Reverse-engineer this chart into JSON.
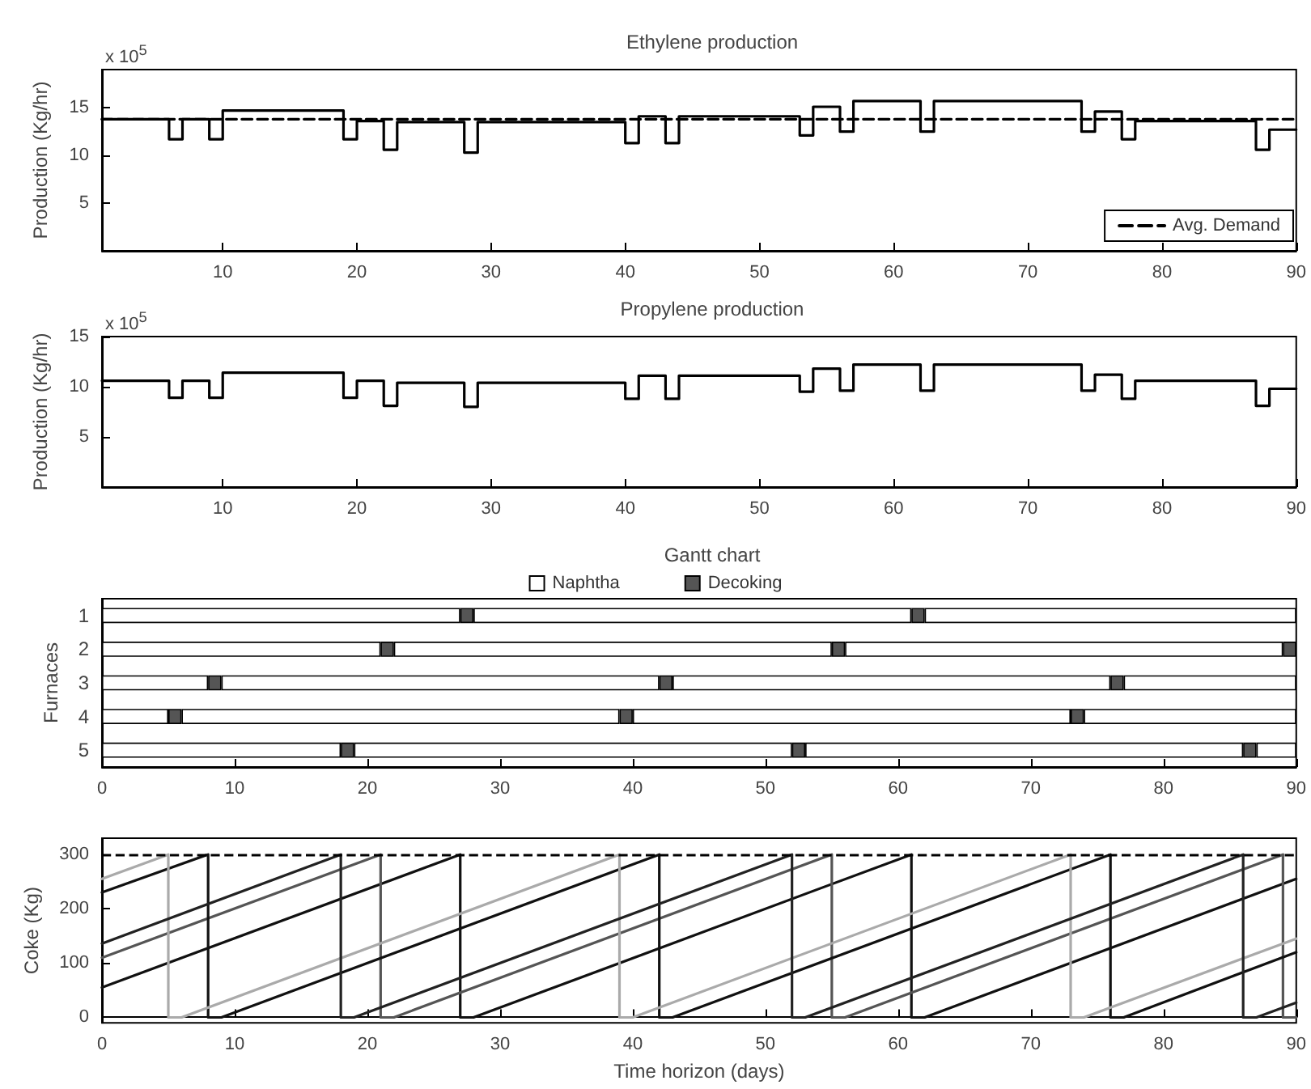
{
  "chart_data": [
    {
      "type": "step",
      "title": "Ethylene production",
      "ylabel": "Production (Kg/hr)",
      "annotations": [
        "x 10$^{5}$"
      ],
      "xlim": [
        1,
        90
      ],
      "xticks": [
        10,
        20,
        30,
        40,
        50,
        60,
        70,
        80,
        90
      ],
      "ylim": [
        0,
        19
      ],
      "yticks": [
        5,
        10,
        15
      ],
      "grid": false,
      "legend": "bottom right",
      "marker": "none",
      "series": [
        {
          "color": "#000000",
          "x": [
            1,
            6,
            7,
            9,
            10,
            19,
            20,
            22,
            23,
            28,
            29,
            40,
            41,
            43,
            44,
            53,
            54,
            56,
            57,
            62,
            63,
            74,
            75,
            77,
            78,
            87,
            88,
            90
          ],
          "values": [
            13.8,
            11.7,
            13.8,
            11.7,
            14.7,
            11.7,
            13.6,
            10.6,
            13.5,
            10.3,
            13.5,
            11.3,
            14.1,
            11.3,
            14.1,
            12.1,
            15.1,
            12.5,
            15.7,
            12.5,
            15.7,
            12.5,
            14.6,
            11.7,
            13.6,
            10.6,
            12.7,
            12.7
          ]
        },
        {
          "name": "Avg. Demand",
          "type": "line",
          "line_style": "dashed",
          "color": "#000000",
          "x": [
            1,
            90
          ],
          "values": [
            13.8,
            13.8
          ]
        }
      ]
    },
    {
      "type": "step",
      "title": "Propylene production",
      "ylabel": "Production (Kg/hr)",
      "annotations": [
        "x 10$^{5}$"
      ],
      "xlim": [
        1,
        90
      ],
      "xticks": [
        10,
        20,
        30,
        40,
        50,
        60,
        70,
        80,
        90
      ],
      "ylim": [
        0,
        15
      ],
      "yticks": [
        5,
        10,
        15
      ],
      "grid": false,
      "marker": "none",
      "series": [
        {
          "color": "#000000",
          "x": [
            1,
            6,
            7,
            9,
            10,
            19,
            20,
            22,
            23,
            28,
            29,
            40,
            41,
            43,
            44,
            53,
            54,
            56,
            57,
            62,
            63,
            74,
            75,
            77,
            78,
            87,
            88,
            90
          ],
          "values": [
            10.6,
            8.9,
            10.6,
            8.9,
            11.4,
            8.9,
            10.6,
            8.1,
            10.4,
            8.0,
            10.4,
            8.8,
            11.1,
            8.8,
            11.1,
            9.5,
            11.8,
            9.6,
            12.2,
            9.6,
            12.2,
            9.6,
            11.2,
            8.8,
            10.6,
            8.1,
            9.8,
            9.8
          ]
        }
      ]
    },
    {
      "type": "bar",
      "orientation": "horizontal",
      "stacked": true,
      "title": "Gantt chart",
      "ylabel": "Furnaces",
      "categories": [
        "1",
        "2",
        "3",
        "4",
        "5"
      ],
      "xlim": [
        0,
        90
      ],
      "xticks": [
        0,
        10,
        20,
        30,
        40,
        50,
        60,
        70,
        80,
        90
      ],
      "grid": false,
      "legend": "top",
      "series": [
        {
          "name": "Naphtha",
          "color": "#ffffff",
          "values": [
            27,
            21,
            8,
            5,
            18
          ]
        },
        {
          "name": "Decoking",
          "color": "#555555",
          "values": [
            1,
            1,
            1,
            1,
            1
          ]
        },
        {
          "color": "#ffffff",
          "values": [
            33,
            33,
            33,
            33,
            33
          ]
        },
        {
          "color": "#555555",
          "values": [
            1,
            1,
            1,
            1,
            1
          ]
        },
        {
          "color": "#ffffff",
          "values": [
            28,
            33,
            33,
            33,
            33
          ]
        },
        {
          "color": "#555555",
          "values": [
            null,
            1,
            1,
            1,
            1
          ]
        },
        {
          "color": "#ffffff",
          "values": [
            null,
            null,
            13,
            16,
            3
          ]
        }
      ]
    },
    {
      "type": "line",
      "ylabel": "Coke (Kg)",
      "xlabel": "Time horizon (days)",
      "xlim": [
        0,
        90
      ],
      "xticks": [
        0,
        10,
        20,
        30,
        40,
        50,
        60,
        70,
        80,
        90
      ],
      "ylim": [
        -10,
        330
      ],
      "yticks": [
        0,
        100,
        200,
        300
      ],
      "grid": false,
      "marker": "none",
      "ref_lines": [
        {
          "axis": "y",
          "value": 300,
          "color": "#000000",
          "line_style": "dashed"
        }
      ],
      "series": [
        {
          "color": "#111111",
          "x": [
            0,
            27,
            27,
            28,
            61,
            61,
            62,
            90
          ],
          "values": [
            55,
            300,
            0,
            0,
            300,
            0,
            0,
            255
          ]
        },
        {
          "color": "#555555",
          "x": [
            0,
            21,
            21,
            22,
            55,
            55,
            56,
            89,
            89,
            90
          ],
          "values": [
            110,
            300,
            0,
            0,
            300,
            0,
            0,
            300,
            0,
            0
          ]
        },
        {
          "color": "#111111",
          "x": [
            0,
            8,
            8,
            9,
            42,
            42,
            43,
            76,
            76,
            77,
            90
          ],
          "values": [
            230,
            300,
            0,
            0,
            300,
            0,
            0,
            300,
            0,
            0,
            120
          ]
        },
        {
          "color": "#aaaaaa",
          "x": [
            0,
            5,
            5,
            6,
            39,
            39,
            40,
            73,
            73,
            74,
            90
          ],
          "values": [
            255,
            300,
            0,
            0,
            300,
            0,
            0,
            300,
            0,
            0,
            145
          ]
        },
        {
          "color": "#222222",
          "x": [
            0,
            18,
            18,
            19,
            52,
            52,
            53,
            86,
            86,
            87,
            90
          ],
          "values": [
            136,
            300,
            0,
            0,
            300,
            0,
            0,
            300,
            0,
            0,
            27
          ]
        }
      ]
    }
  ]
}
